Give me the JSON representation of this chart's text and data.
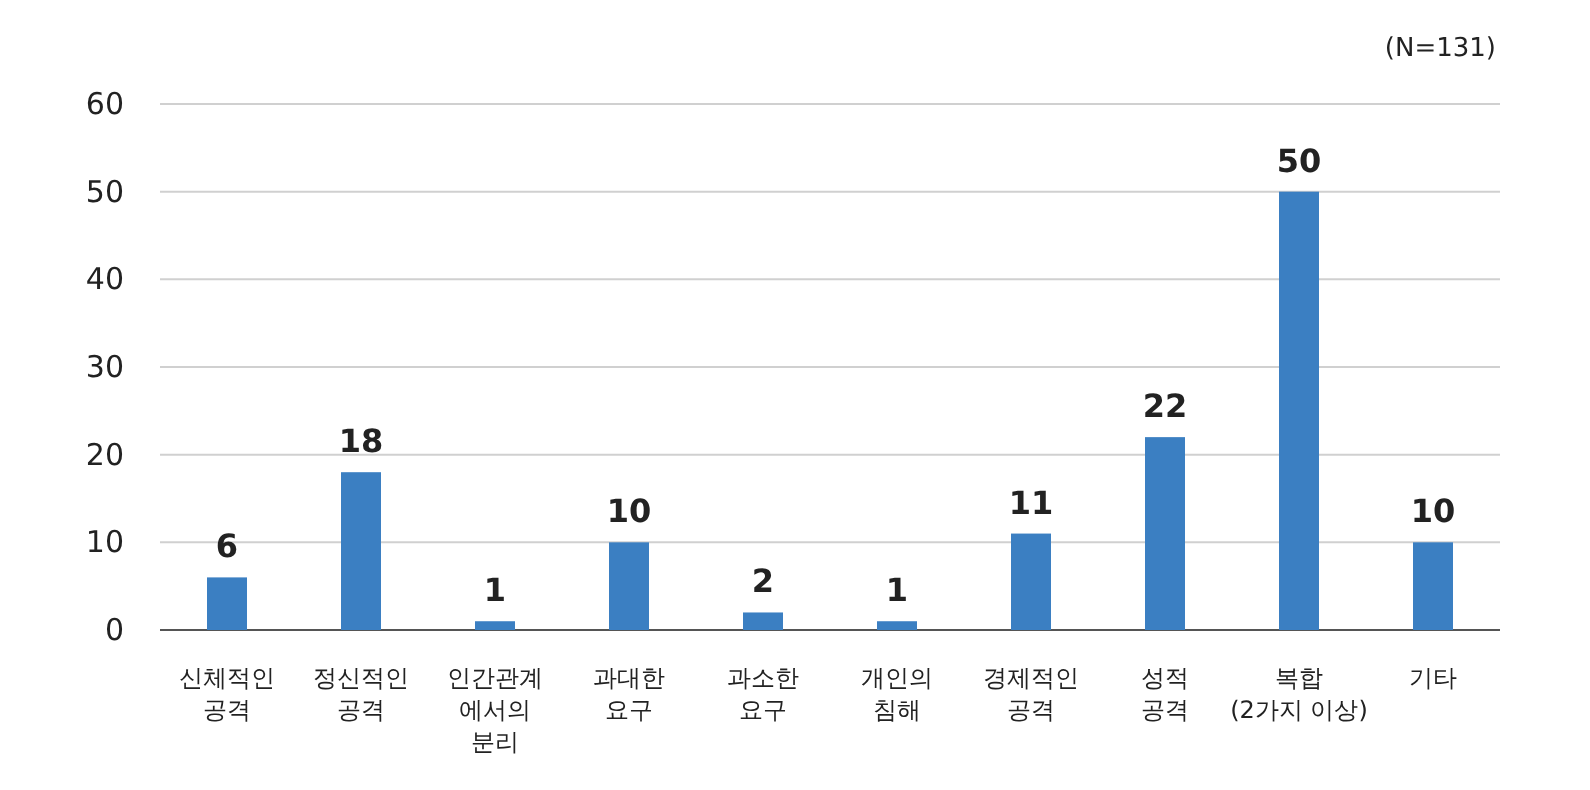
{
  "chart_data": {
    "type": "bar",
    "categories": [
      "신체적인\n공격",
      "정신적인\n공격",
      "인간관계\n에서의\n분리",
      "과대한\n요구",
      "과소한\n요구",
      "개인의\n침해",
      "경제적인\n공격",
      "성적\n공격",
      "복합\n(2가지 이상)",
      "기타"
    ],
    "values": [
      6,
      18,
      1,
      10,
      2,
      1,
      11,
      22,
      50,
      10
    ],
    "color": "#3b7fc2",
    "ylim": [
      0,
      60
    ],
    "yticks": [
      0,
      10,
      20,
      30,
      40,
      50,
      60
    ],
    "grid": "y",
    "data_labels": true,
    "annotations": [
      "(N=131)"
    ]
  }
}
